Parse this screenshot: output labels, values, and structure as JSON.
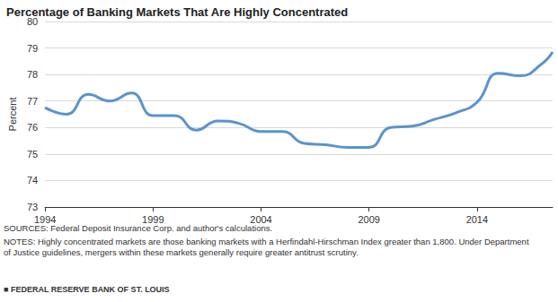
{
  "chart_data": {
    "type": "line",
    "title": "Percentage of Banking Markets That Are Highly Concentrated",
    "y_label": "Percent",
    "x": [
      1994,
      1995,
      1996,
      1997,
      1998,
      1999,
      2000,
      2001,
      2002,
      2003,
      2004,
      2005,
      2006,
      2007,
      2008,
      2009,
      2010,
      2011,
      2012,
      2013,
      2014,
      2015,
      2016,
      2017,
      2017.5
    ],
    "values": [
      76.75,
      76.5,
      77.25,
      77.0,
      77.3,
      76.45,
      76.45,
      75.9,
      76.25,
      76.15,
      75.85,
      75.85,
      75.4,
      75.35,
      75.25,
      75.25,
      76.0,
      76.05,
      76.3,
      76.55,
      76.95,
      78.05,
      77.95,
      78.4,
      78.85
    ],
    "color": "#5b93cf",
    "xlim": [
      1994,
      2017.5
    ],
    "xticks": [
      1994,
      1999,
      2004,
      2009,
      2014
    ],
    "ylim": [
      73,
      80
    ],
    "yticks": [
      73,
      74,
      75,
      76,
      77,
      78,
      79,
      80
    ],
    "grid": true,
    "annotations": [
      "SOURCES: Federal Deposit Insurance Corp. and author's calculations.",
      "NOTES: Highly concentrated markets are those banking markets with a Herfindahl-Hirschman Index greater than 1,800. Under Department of Justice guidelines, mergers within these markets generally require greater antitrust scrutiny.",
      "■ FEDERAL RESERVE BANK OF ST. LOUIS"
    ]
  }
}
